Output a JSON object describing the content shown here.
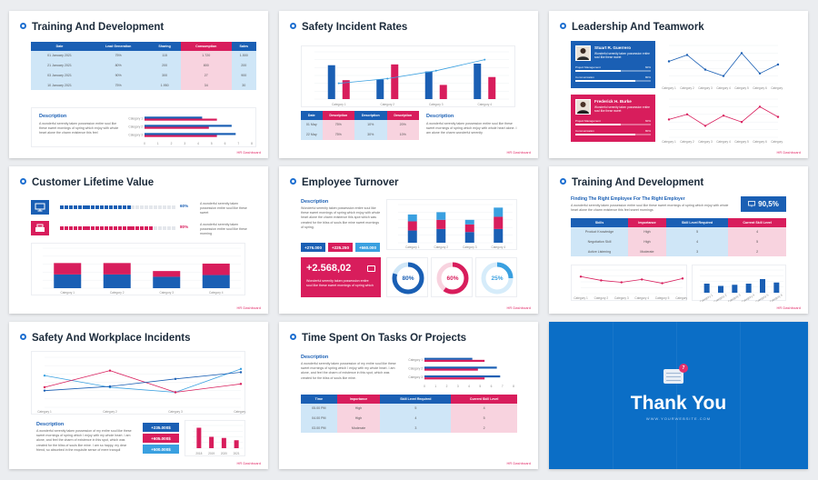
{
  "slides": [
    {
      "title": "Training And Development",
      "footer": "HR Dashboard",
      "table": {
        "headers": [
          "Date",
          "Lead Generation",
          "Sharing",
          "Consumption",
          "Sales"
        ],
        "rows": [
          [
            "01 January 2021",
            "75%",
            "115",
            "1.720",
            "1.500"
          ],
          [
            "21 January 2021",
            "80%",
            "200",
            "800",
            "200"
          ],
          [
            "03 January 2021",
            "90%",
            "300",
            "27",
            "900"
          ],
          [
            "10 January 2021",
            "75%",
            "1.950",
            "34",
            "30"
          ]
        ]
      },
      "description_title": "Description",
      "description_text": "A wonderful serenity taken possession entire soul like these sweet mornings of spring which enjoy with whole heart alone the charm existence this feel",
      "chart_data": {
        "type": "bar",
        "orientation": "horizontal",
        "categories": [
          "Category 1",
          "Category 2",
          "Category 3"
        ],
        "series": [
          {
            "values": [
              4.3,
              6.5,
              6.8
            ]
          },
          {
            "values": [
              5.4,
              4.8,
              5.4
            ]
          }
        ],
        "xticks": [
          "0",
          "1",
          "2",
          "3",
          "4",
          "5",
          "6",
          "7",
          "8"
        ],
        "xlim": [
          0,
          8
        ],
        "colors": [
          "#1a5fb4",
          "#d81d5c"
        ]
      }
    },
    {
      "title": "Safety Incident Rates",
      "footer": "HR Dashboard",
      "chart_data": {
        "type": "bar",
        "categories": [
          "Category 1",
          "Category 2",
          "Category 3",
          "Category 4"
        ],
        "series": [
          {
            "values": [
              4.3,
              2.5,
              3.5,
              4.5
            ]
          },
          {
            "values": [
              2.4,
              4.4,
              1.8,
              2.8
            ]
          }
        ],
        "line": [
          2.0,
          2.6,
          3.6,
          5.0
        ],
        "ylim": [
          0,
          6
        ],
        "colors": [
          "#1a5fb4",
          "#d81d5c",
          "#3aa0e0"
        ]
      },
      "table": {
        "headers": [
          "Date",
          "Description",
          "Description",
          "Description"
        ],
        "rows": [
          [
            "01 May",
            "75%",
            "10%",
            "20%"
          ],
          [
            "22 May",
            "75%",
            "30%",
            "10%"
          ]
        ]
      },
      "description_title": "Description",
      "description_text": "A wonderful serenity taken possession entire soul like these sweet mornings of spring which enjoy with whole heart alone. I am alone the charm wonderful serenity"
    },
    {
      "title": "Leadership And Teamwork",
      "footer": "HR Dashboard",
      "people": [
        {
          "name": "Stuart R. Guerrero",
          "role": "Wonderful serenity taken possession entire soul like these sweet",
          "skills": [
            {
              "label": "Project Management",
              "value": "60%",
              "pct": 60
            },
            {
              "label": "Communication",
              "value": "80%",
              "pct": 80
            }
          ],
          "color": "#1a5fb4"
        },
        {
          "name": "Frederick H. Burke",
          "role": "Wonderful serenity taken possession entire soul like these sweet",
          "skills": [
            {
              "label": "Project Management",
              "value": "60%",
              "pct": 60
            },
            {
              "label": "Communication",
              "value": "80%",
              "pct": 80
            }
          ],
          "color": "#d81d5c"
        }
      ],
      "chart_data": [
        {
          "type": "line",
          "categories": [
            "Category 1",
            "Category 2",
            "Category 3",
            "Category 4",
            "Category 5",
            "Category 6",
            "Category 7"
          ],
          "values": [
            3.5,
            4.5,
            2.2,
            1.2,
            4.8,
            1.6,
            3.0
          ],
          "ylim": [
            0,
            6
          ],
          "color": "#1a5fb4"
        },
        {
          "type": "line",
          "categories": [
            "Category 1",
            "Category 2",
            "Category 3",
            "Category 4",
            "Category 5",
            "Category 6",
            "Category 7"
          ],
          "values": [
            2.8,
            3.6,
            1.8,
            3.4,
            2.4,
            4.8,
            3.2
          ],
          "ylim": [
            0,
            6
          ],
          "color": "#d81d5c"
        }
      ]
    },
    {
      "title": "Customer Lifetime Value",
      "footer": "HR Dashboard",
      "progress": [
        {
          "value": "60%",
          "pct": 60,
          "text": "A wonderful serenity taken possession entire soul like these sweet",
          "color": "#1a5fb4",
          "icon": "monitor-icon"
        },
        {
          "value": "80%",
          "pct": 80,
          "text": "A wonderful serenity taken possession entire soul like these morning",
          "color": "#d81d5c",
          "icon": "cash-register-icon"
        }
      ],
      "chart_data": {
        "type": "bar",
        "stacked": true,
        "categories": [
          "Category 1",
          "Category 2",
          "Category 3",
          "Category 4"
        ],
        "series": [
          {
            "values": [
              2.4,
              2.4,
              2.0,
              2.3
            ]
          },
          {
            "values": [
              2.0,
              2.0,
              1.0,
              2.0
            ]
          }
        ],
        "ylim": [
          0,
          7
        ],
        "colors": [
          "#1a5fb4",
          "#d81d5c"
        ]
      }
    },
    {
      "title": "Employee Turnover",
      "footer": "HR Dashboard",
      "description_title": "Description",
      "description_text": "Wonderful serenity taken possession entire soul like these sweet mornings of spring which enjoy with whole heart alone the charm existence this spot which was created for the bliss of souls like mine sweet mornings of spring.",
      "pills": [
        {
          "label": "+276.000",
          "color": "#1a5fb4"
        },
        {
          "label": "+225.250",
          "color": "#d81d5c"
        },
        {
          "label": "+560.000",
          "color": "#3aa0e0"
        }
      ],
      "stat": {
        "value": "+2.568,02",
        "text": "Wonderful serenity taken possession entire soul like these sweet mornings of spring which"
      },
      "rings": [
        {
          "label": "80%",
          "pct": 80,
          "color": "#1a5fb4",
          "track": "#cfe6f7"
        },
        {
          "label": "60%",
          "pct": 60,
          "color": "#d81d5c",
          "track": "#f8d3df"
        },
        {
          "label": "25%",
          "pct": 25,
          "color": "#3aa0e0",
          "track": "#d6ecfa"
        }
      ],
      "chart_data": {
        "type": "bar",
        "stacked": true,
        "categories": [
          "Category 1",
          "Category 2",
          "Category 3",
          "Category 4"
        ],
        "series": [
          {
            "values": [
              1.6,
              1.8,
              1.4,
              1.8
            ]
          },
          {
            "values": [
              1.2,
              1.2,
              1.0,
              1.6
            ]
          },
          {
            "values": [
              0.9,
              1.0,
              0.6,
              1.2
            ]
          }
        ],
        "ylim": [
          0,
          5
        ],
        "colors": [
          "#1a5fb4",
          "#d81d5c",
          "#3aa0e0"
        ]
      }
    },
    {
      "title": "Training And Development",
      "footer": "HR Dashboard",
      "subtitle": "Finding The Right Employee For The Right Employer",
      "subtext": "A wonderful serenity taken possession entire soul like these sweet mornings of spring which enjoy with whole heart alone the charm existence this feel sweet mornings",
      "badge": "90,5%",
      "table": {
        "headers": [
          "Skills",
          "Importance",
          "Skill Level Required",
          "Current Skill Level"
        ],
        "rows": [
          [
            "Product Knowledge",
            "High",
            "5",
            "4"
          ],
          [
            "Negotiation Skill",
            "High",
            "4",
            "5"
          ],
          [
            "Active Listening",
            "Moderate",
            "3",
            "2"
          ]
        ]
      },
      "chart_data": [
        {
          "type": "line",
          "categories": [
            "Category 1",
            "Category 2",
            "Category 3",
            "Category 4",
            "Category 5",
            "Category 6"
          ],
          "values": [
            3.6,
            2.8,
            2.4,
            3.0,
            2.2,
            3.2
          ],
          "ylim": [
            0,
            5
          ],
          "color": "#d81d5c"
        },
        {
          "type": "bar",
          "categories": [
            "Category 1",
            "Category 2",
            "Category 3",
            "Category 4",
            "Category 5",
            "Category 6"
          ],
          "values": [
            1.6,
            1.2,
            1.4,
            1.6,
            2.4,
            1.8
          ],
          "ylim": [
            0,
            4
          ],
          "color": "#1a5fb4"
        }
      ]
    },
    {
      "title": "Safety And Workplace Incidents",
      "footer": "HR Dashboard",
      "chart_data": {
        "type": "line",
        "categories": [
          "Category 1",
          "Category 2",
          "Category 3",
          "Category 4"
        ],
        "series": [
          {
            "values": [
              3.8,
              2.4,
              1.8,
              4.6
            ]
          },
          {
            "values": [
              2.4,
              4.4,
              1.8,
              2.8
            ]
          },
          {
            "values": [
              2.0,
              2.5,
              3.4,
              4.2
            ]
          }
        ],
        "ylim": [
          0,
          6
        ],
        "colors": [
          "#3aa0e0",
          "#d81d5c",
          "#1a5fb4"
        ]
      },
      "description_title": "Description",
      "description_text": "A wonderful serenity taken possession of my entire soul like these sweet mornings of spring which I enjoy with my whole heart. I am alone, and feel the charm of existence in this spot, which was created for the bliss of souls like mine. I am so happy, my dear friend, so absorbed in the exquisite sense of mere tranquil",
      "pills": [
        {
          "label": "+235.000$",
          "color": "#1a5fb4"
        },
        {
          "label": "+605.000$",
          "color": "#d81d5c"
        },
        {
          "label": "+500.000$",
          "color": "#3aa0e0"
        }
      ],
      "mini_chart": {
        "type": "bar",
        "categories": [
          "2018",
          "2019",
          "2020",
          "2021"
        ],
        "values": [
          3.6,
          2.0,
          1.8,
          1.4
        ],
        "ylim": [
          0,
          4
        ],
        "color": "#d81d5c"
      }
    },
    {
      "title": "Time Spent On Tasks Or Projects",
      "footer": "HR Dashboard",
      "description_title": "Description",
      "description_text": "A wonderful serenity taken possession of my entire soul like these sweet mornings of spring which I enjoy with my whole heart. I am alone, and feel the charm of existence in this spot, which was created for the bliss of souls like mine.",
      "chart_data": {
        "type": "bar",
        "orientation": "horizontal",
        "categories": [
          "Category 1",
          "Category 2",
          "Category 3"
        ],
        "series": [
          {
            "values": [
              4.3,
              6.5,
              6.8
            ]
          },
          {
            "values": [
              5.4,
              4.8,
              5.4
            ]
          }
        ],
        "xticks": [
          "0",
          "1",
          "2",
          "3",
          "4",
          "5",
          "6",
          "7",
          "8"
        ],
        "xlim": [
          0,
          8
        ],
        "colors": [
          "#1a5fb4",
          "#d81d5c"
        ]
      },
      "table": {
        "headers": [
          "Time",
          "Importance",
          "Skill Level Required",
          "Current Skill Level"
        ],
        "rows": [
          [
            "05.00 PM",
            "High",
            "5",
            "4"
          ],
          [
            "04.00 PM",
            "High",
            "4",
            "5"
          ],
          [
            "03.00 PM",
            "Moderate",
            "3",
            "2"
          ]
        ]
      }
    },
    {
      "title": "Thank You",
      "website": "WWW.YOURWEBSITE.COM",
      "notification": "7"
    }
  ]
}
